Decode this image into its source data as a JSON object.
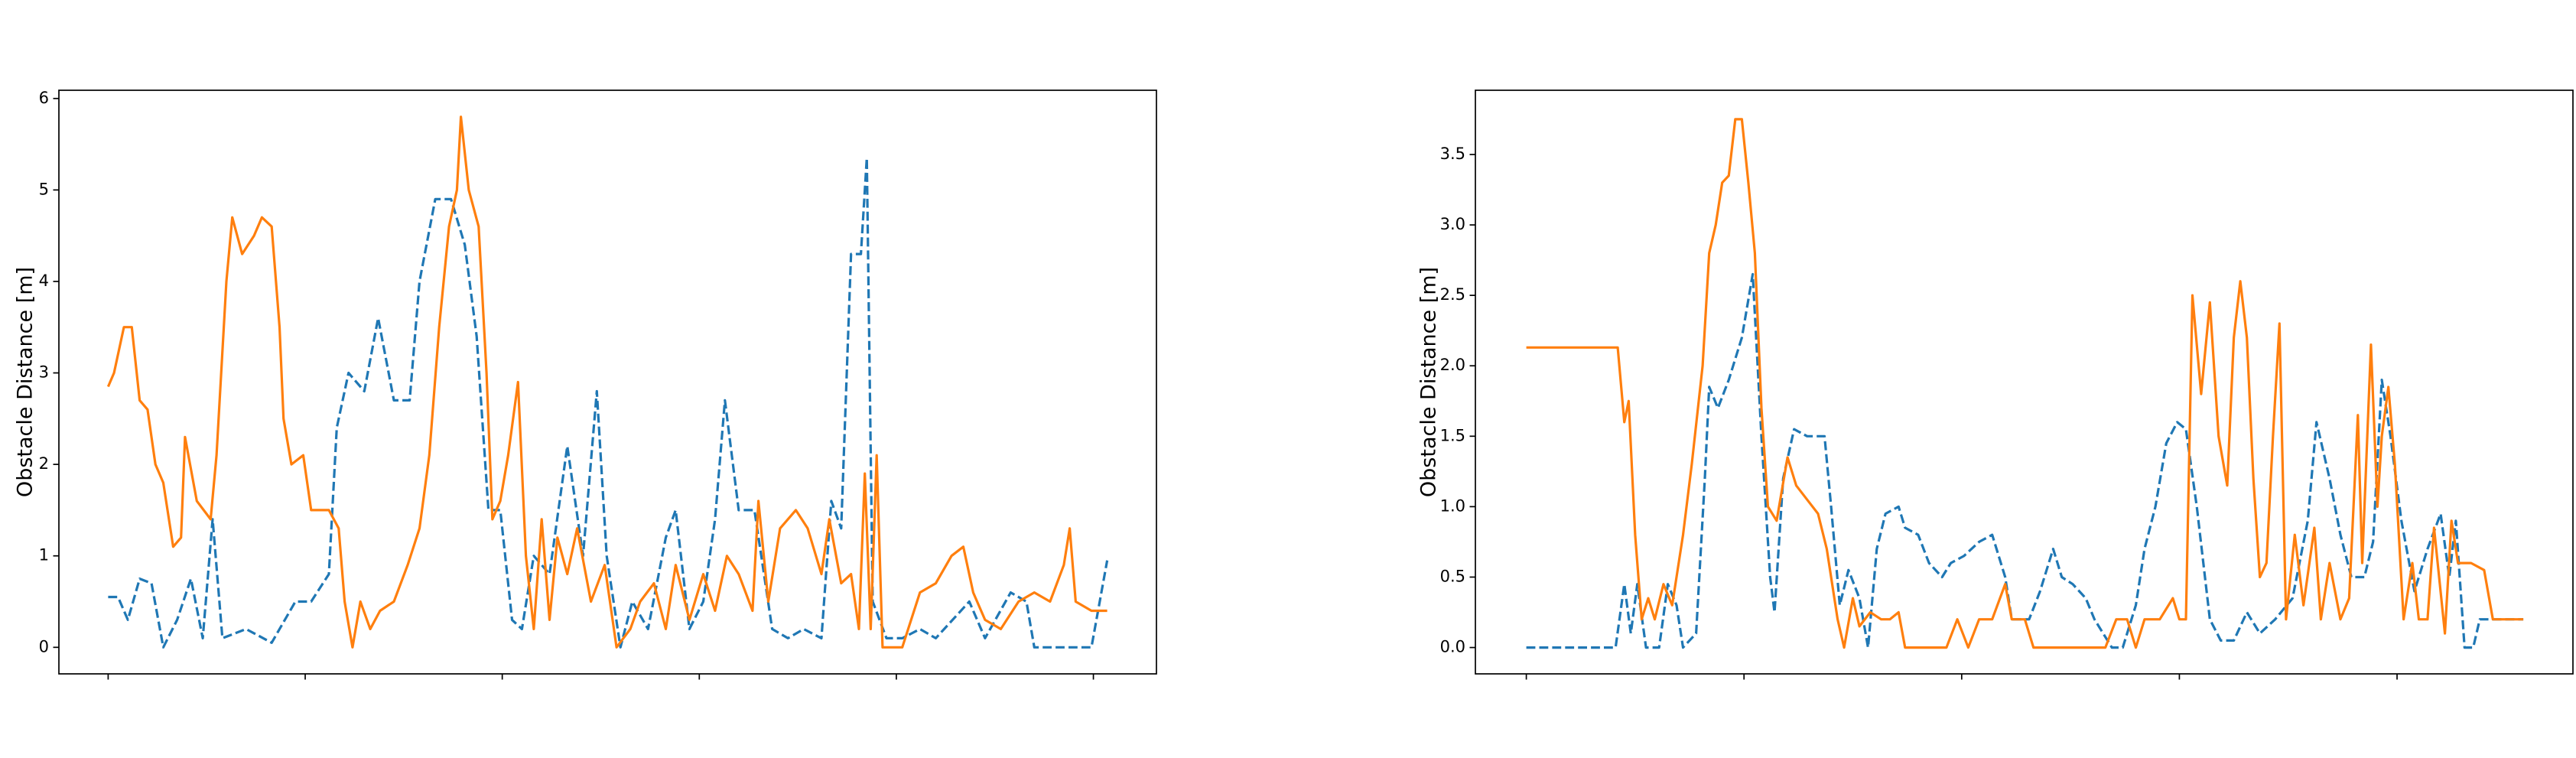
{
  "chart_data": [
    {
      "type": "line",
      "y_label": "Obstacle Distance [m]",
      "xlim": [
        -25,
        532
      ],
      "xticks": [
        0,
        100,
        200,
        300,
        400,
        500
      ],
      "ylim": [
        -0.29,
        6.09
      ],
      "yticks": [
        0,
        1,
        2,
        3,
        4,
        5,
        6
      ],
      "series": [
        {
          "color": "#1f77b4",
          "style": "dashed",
          "x": [
            0,
            5,
            10,
            16,
            22,
            28,
            35,
            42,
            48,
            53,
            58,
            70,
            83,
            95,
            103,
            112,
            116,
            122,
            130,
            137,
            145,
            153,
            158,
            166,
            174,
            181,
            187,
            193,
            199,
            205,
            210,
            216,
            224,
            233,
            241,
            248,
            253,
            260,
            266,
            274,
            283,
            288,
            295,
            302,
            308,
            313,
            320,
            328,
            337,
            345,
            353,
            362,
            367,
            372,
            377,
            382,
            385,
            388,
            395,
            403,
            412,
            420,
            437,
            445,
            458,
            466,
            470,
            499,
            507
          ],
          "values": [
            0.55,
            0.55,
            0.3,
            0.75,
            0.7,
            0.0,
            0.3,
            0.75,
            0.1,
            1.4,
            0.1,
            0.2,
            0.05,
            0.5,
            0.5,
            0.8,
            2.4,
            3.0,
            2.8,
            3.6,
            2.7,
            2.7,
            4.0,
            4.9,
            4.9,
            4.4,
            3.4,
            1.5,
            1.5,
            0.3,
            0.2,
            1.0,
            0.8,
            2.2,
            1.0,
            2.8,
            1.0,
            0.0,
            0.5,
            0.2,
            1.2,
            1.5,
            0.2,
            0.5,
            1.4,
            2.7,
            1.5,
            1.5,
            0.2,
            0.1,
            0.2,
            0.1,
            1.6,
            1.3,
            4.3,
            4.3,
            5.35,
            0.5,
            0.1,
            0.1,
            0.2,
            0.1,
            0.5,
            0.1,
            0.6,
            0.5,
            0.0,
            0.0,
            0.95
          ]
        },
        {
          "color": "#ff7f0e",
          "style": "solid",
          "x": [
            0,
            3,
            8,
            12,
            16,
            20,
            24,
            28,
            33,
            37,
            39,
            45,
            52,
            55,
            60,
            63,
            68,
            74,
            78,
            83,
            87,
            89,
            93,
            99,
            103,
            112,
            117,
            120,
            124,
            128,
            133,
            138,
            145,
            152,
            158,
            163,
            168,
            173,
            177,
            179,
            183,
            188,
            192,
            195,
            199,
            203,
            208,
            212,
            216,
            220,
            224,
            228,
            233,
            238,
            245,
            252,
            258,
            265,
            270,
            277,
            283,
            288,
            295,
            302,
            308,
            314,
            320,
            327,
            330,
            335,
            341,
            349,
            355,
            362,
            366,
            372,
            377,
            381,
            384,
            387,
            390,
            393,
            403,
            412,
            420,
            428,
            434,
            439,
            445,
            453,
            462,
            470,
            478,
            485,
            488,
            491,
            499,
            507
          ],
          "values": [
            2.85,
            3.0,
            3.5,
            3.5,
            2.7,
            2.6,
            2.0,
            1.8,
            1.1,
            1.2,
            2.3,
            1.6,
            1.4,
            2.1,
            4.0,
            4.7,
            4.3,
            4.5,
            4.7,
            4.6,
            3.5,
            2.5,
            2.0,
            2.1,
            1.5,
            1.5,
            1.3,
            0.5,
            0.0,
            0.5,
            0.2,
            0.4,
            0.5,
            0.9,
            1.3,
            2.1,
            3.5,
            4.6,
            5.0,
            5.8,
            5.0,
            4.6,
            3.0,
            1.4,
            1.6,
            2.1,
            2.9,
            1.0,
            0.2,
            1.4,
            0.3,
            1.2,
            0.8,
            1.3,
            0.5,
            0.9,
            0.0,
            0.2,
            0.5,
            0.7,
            0.2,
            0.9,
            0.3,
            0.8,
            0.4,
            1.0,
            0.8,
            0.4,
            1.6,
            0.5,
            1.3,
            1.5,
            1.3,
            0.8,
            1.4,
            0.7,
            0.8,
            0.2,
            1.9,
            0.2,
            2.1,
            0.0,
            0.0,
            0.6,
            0.7,
            1.0,
            1.1,
            0.6,
            0.3,
            0.2,
            0.5,
            0.6,
            0.5,
            0.9,
            1.3,
            0.5,
            0.4,
            0.4
          ]
        }
      ]
    },
    {
      "type": "line",
      "y_label": "Obstacle Distance [m]",
      "xlim": [
        -23.4,
        480.8
      ],
      "xticks": [
        0,
        100,
        200,
        300,
        400
      ],
      "ylim": [
        -0.187,
        3.956
      ],
      "yticks": [
        {
          "value": 0,
          "label": "0.0"
        },
        0.5,
        {
          "value": 1,
          "label": "1.0"
        },
        1.5,
        {
          "value": 2,
          "label": "2.0"
        },
        2.5,
        {
          "value": 3,
          "label": "3.0"
        },
        3.5
      ],
      "series": [
        {
          "color": "#1f77b4",
          "style": "dashed",
          "x": [
            0,
            41,
            45,
            48,
            51,
            55,
            61,
            65,
            69,
            72,
            78,
            82,
            84,
            88,
            93,
            99,
            104,
            108,
            112,
            114,
            118,
            123,
            129,
            137,
            140,
            144,
            148,
            153,
            157,
            161,
            165,
            171,
            174,
            180,
            185,
            191,
            195,
            201,
            208,
            214,
            220,
            223,
            231,
            236,
            242,
            246,
            251,
            257,
            261,
            269,
            274,
            280,
            284,
            289,
            294,
            299,
            303,
            308,
            314,
            319,
            325,
            331,
            337,
            344,
            352,
            359,
            363,
            369,
            374,
            379,
            385,
            389,
            393,
            397,
            402,
            408,
            414,
            420,
            424,
            427,
            431,
            435,
            438,
            458
          ],
          "values": [
            0.0,
            0.0,
            0.45,
            0.1,
            0.45,
            0.0,
            0.0,
            0.45,
            0.3,
            0.0,
            0.1,
            1.2,
            1.85,
            1.7,
            1.9,
            2.2,
            2.65,
            1.5,
            0.5,
            0.25,
            1.2,
            1.55,
            1.5,
            1.5,
            1.0,
            0.3,
            0.55,
            0.35,
            0.0,
            0.7,
            0.95,
            1.0,
            0.85,
            0.8,
            0.6,
            0.5,
            0.6,
            0.65,
            0.75,
            0.8,
            0.5,
            0.2,
            0.2,
            0.4,
            0.7,
            0.5,
            0.45,
            0.35,
            0.2,
            0.0,
            0.0,
            0.3,
            0.7,
            1.0,
            1.45,
            1.6,
            1.55,
            1.0,
            0.2,
            0.05,
            0.05,
            0.25,
            0.1,
            0.2,
            0.35,
            0.9,
            1.6,
            1.2,
            0.8,
            0.5,
            0.5,
            0.75,
            1.9,
            1.5,
            0.9,
            0.4,
            0.7,
            0.95,
            0.5,
            0.9,
            0.0,
            0.0,
            0.2,
            0.2
          ]
        },
        {
          "color": "#ff7f0e",
          "style": "solid",
          "x": [
            0,
            42,
            45,
            47,
            50,
            53,
            56,
            59,
            63,
            67,
            72,
            76,
            81,
            84,
            87,
            90,
            93,
            96,
            99,
            102,
            105,
            108,
            111,
            115,
            120,
            124,
            129,
            134,
            138,
            143,
            146,
            150,
            153,
            158,
            163,
            167,
            171,
            174,
            182,
            193,
            198,
            203,
            208,
            214,
            220,
            223,
            229,
            233,
            242,
            257,
            266,
            271,
            276,
            280,
            284,
            291,
            297,
            300,
            303,
            306,
            310,
            314,
            318,
            322,
            325,
            328,
            331,
            334,
            337,
            340,
            343,
            346,
            349,
            353,
            357,
            362,
            365,
            369,
            374,
            378,
            382,
            384,
            388,
            391,
            393,
            396,
            399,
            403,
            407,
            410,
            414,
            417,
            422,
            425,
            428,
            434,
            440,
            444,
            458
          ],
          "values": [
            2.13,
            2.13,
            1.6,
            1.75,
            0.8,
            0.2,
            0.35,
            0.2,
            0.45,
            0.3,
            0.8,
            1.3,
            2.0,
            2.8,
            3.0,
            3.3,
            3.35,
            3.75,
            3.75,
            3.3,
            2.8,
            1.7,
            1.0,
            0.9,
            1.35,
            1.15,
            1.05,
            0.95,
            0.7,
            0.2,
            0.0,
            0.35,
            0.15,
            0.25,
            0.2,
            0.2,
            0.25,
            0.0,
            0.0,
            0.0,
            0.2,
            0.0,
            0.2,
            0.2,
            0.45,
            0.2,
            0.2,
            0.0,
            0.0,
            0.0,
            0.0,
            0.2,
            0.2,
            0.0,
            0.2,
            0.2,
            0.35,
            0.2,
            0.2,
            2.5,
            1.8,
            2.45,
            1.5,
            1.15,
            2.2,
            2.6,
            2.2,
            1.2,
            0.5,
            0.6,
            1.5,
            2.3,
            0.2,
            0.8,
            0.3,
            0.85,
            0.2,
            0.6,
            0.2,
            0.35,
            1.65,
            0.6,
            2.15,
            1.0,
            1.5,
            1.85,
            1.3,
            0.2,
            0.6,
            0.2,
            0.2,
            0.85,
            0.1,
            0.9,
            0.6,
            0.6,
            0.55,
            0.2,
            0.2
          ]
        }
      ]
    }
  ]
}
